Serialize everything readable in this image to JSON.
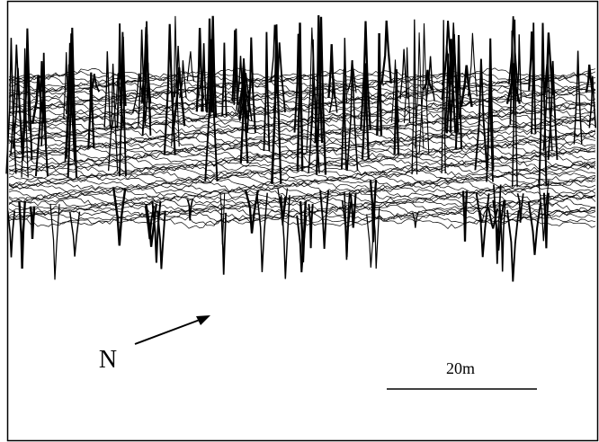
{
  "labels": {
    "north": "N",
    "scale": "20m"
  }
}
